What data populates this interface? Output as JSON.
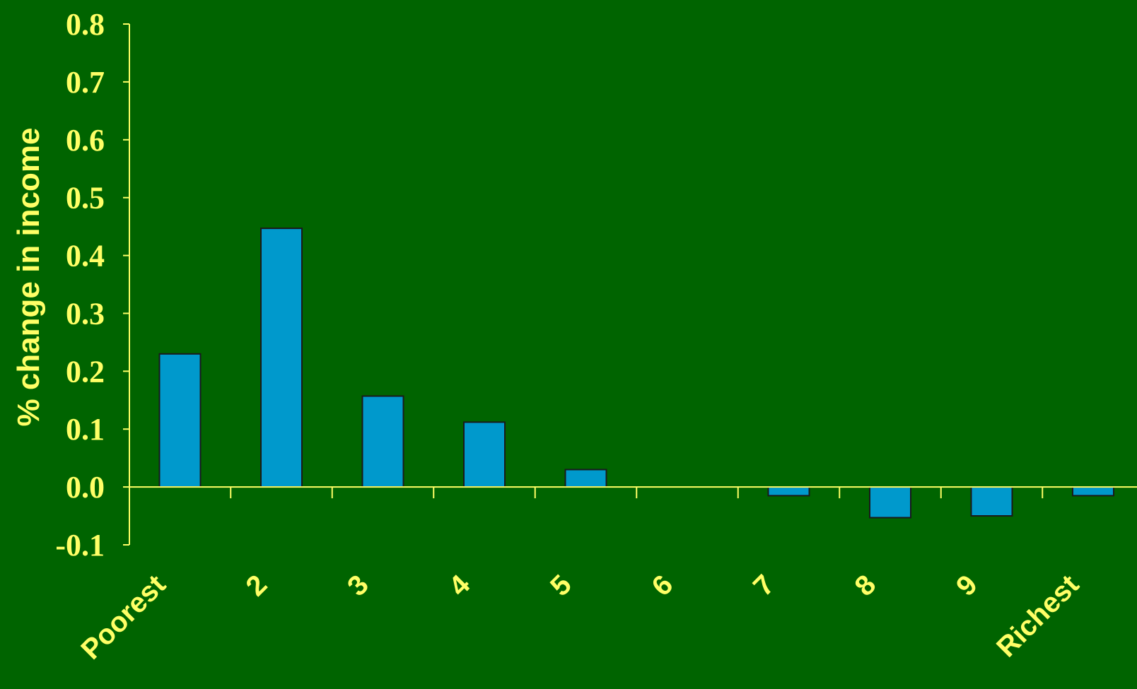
{
  "chart_data": {
    "type": "bar",
    "title": "",
    "xlabel": "",
    "ylabel": "% change in income",
    "categories": [
      "Poorest",
      "2",
      "3",
      "4",
      "5",
      "6",
      "7",
      "8",
      "9",
      "Richest"
    ],
    "values": [
      0.23,
      0.447,
      0.157,
      0.112,
      0.03,
      0.0,
      -0.015,
      -0.053,
      -0.05,
      -0.015
    ],
    "ylim": [
      -0.1,
      0.8
    ],
    "yticks": [
      "-0.1",
      "0.0",
      "0.1",
      "0.2",
      "0.3",
      "0.4",
      "0.5",
      "0.6",
      "0.7",
      "0.8"
    ],
    "grid": false,
    "legend": "none",
    "colors": {
      "background": "#006400",
      "bar_fill": "#0099CC",
      "bar_stroke": "#1A1A1A",
      "axis": "#FFFF66",
      "text": "#FFFF66"
    }
  }
}
